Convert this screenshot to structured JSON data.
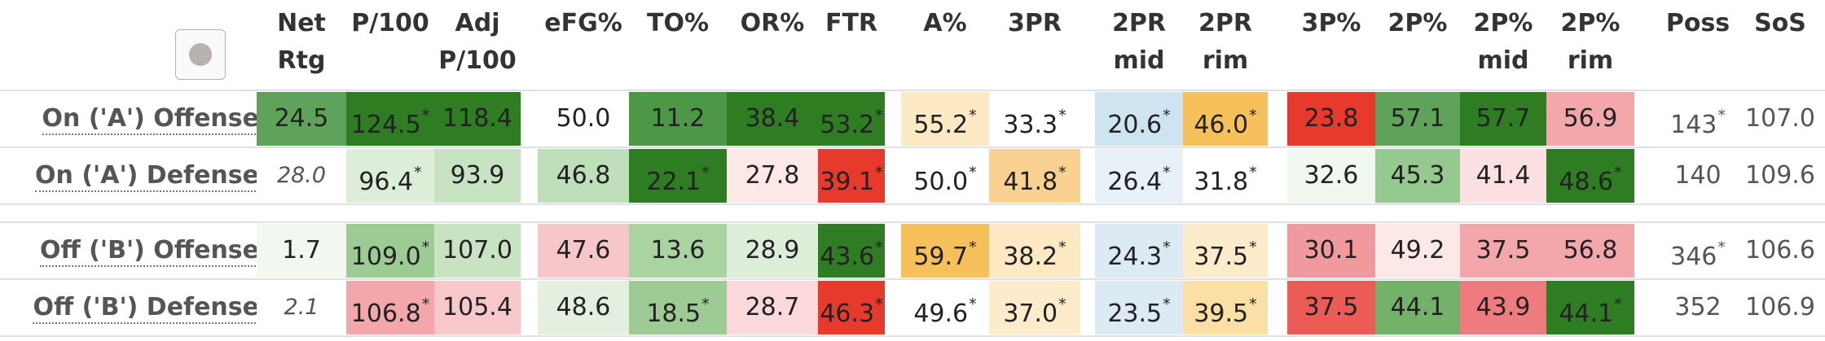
{
  "headers": {
    "net": [
      "Net",
      "Rtg"
    ],
    "p100": [
      "",
      "P/100"
    ],
    "adjp100": [
      "Adj",
      "P/100"
    ],
    "efg": [
      "",
      "eFG%"
    ],
    "to": [
      "",
      "TO%"
    ],
    "or": [
      "",
      "OR%"
    ],
    "ftr": [
      "",
      "FTR"
    ],
    "a": [
      "",
      "A%"
    ],
    "threepr": [
      "",
      "3PR"
    ],
    "twoprmid": [
      "2PR",
      "mid"
    ],
    "twoprrim": [
      "2PR",
      "rim"
    ],
    "threep": [
      "",
      "3P%"
    ],
    "twop": [
      "",
      "2P%"
    ],
    "twopmid": [
      "2P%",
      "mid"
    ],
    "twoprim2": [
      "2P%",
      "rim"
    ],
    "poss": [
      "",
      "Poss"
    ],
    "sos": [
      "",
      "SoS"
    ]
  },
  "rows": [
    {
      "label": "On ('A') Offense",
      "cells": [
        {
          "v": "24.5",
          "s": "",
          "bg": "#5fa35a"
        },
        {
          "v": "124.5",
          "s": "*",
          "bg": "#2e7d23"
        },
        {
          "v": "118.4",
          "s": "",
          "bg": "#2e7d23"
        },
        {
          "v": "50.0",
          "s": "",
          "bg": "#ffffff"
        },
        {
          "v": "11.2",
          "s": "",
          "bg": "#4d9846"
        },
        {
          "v": "38.4",
          "s": "",
          "bg": "#2e7d23"
        },
        {
          "v": "53.2",
          "s": "*",
          "bg": "#2e7d23"
        },
        {
          "v": "55.2",
          "s": "*",
          "bg": "#fde9c4"
        },
        {
          "v": "33.3",
          "s": "*",
          "bg": "#ffffff"
        },
        {
          "v": "20.6",
          "s": "*",
          "bg": "#cfe4f1"
        },
        {
          "v": "46.0",
          "s": "*",
          "bg": "#f6c15a"
        },
        {
          "v": "23.8",
          "s": "",
          "bg": "#e7392c"
        },
        {
          "v": "57.1",
          "s": "",
          "bg": "#5fa35a"
        },
        {
          "v": "57.7",
          "s": "",
          "bg": "#2e7d23"
        },
        {
          "v": "56.9",
          "s": "",
          "bg": "#f4a7aa"
        },
        {
          "v": "143",
          "s": "*",
          "bg": "#ffffff",
          "plain": true
        },
        {
          "v": "107.0",
          "s": "",
          "bg": "#ffffff",
          "plain": true
        }
      ]
    },
    {
      "label": "On ('A') Defense",
      "cells": [
        {
          "v": "28.0",
          "s": "",
          "bg": "#ffffff",
          "it": true
        },
        {
          "v": "96.4",
          "s": "*",
          "bg": "#ddeed8"
        },
        {
          "v": "93.9",
          "s": "",
          "bg": "#c7e3c1"
        },
        {
          "v": "46.8",
          "s": "",
          "bg": "#bfdeba"
        },
        {
          "v": "22.1",
          "s": "*",
          "bg": "#2e7d23"
        },
        {
          "v": "27.8",
          "s": "",
          "bg": "#fde8e8"
        },
        {
          "v": "39.1",
          "s": "*",
          "bg": "#e7392c"
        },
        {
          "v": "50.0",
          "s": "*",
          "bg": "#ffffff"
        },
        {
          "v": "41.8",
          "s": "*",
          "bg": "#f9d291"
        },
        {
          "v": "26.4",
          "s": "*",
          "bg": "#e8f1f8"
        },
        {
          "v": "31.8",
          "s": "*",
          "bg": "#ffffff"
        },
        {
          "v": "32.6",
          "s": "",
          "bg": "#f1f8ef"
        },
        {
          "v": "45.3",
          "s": "",
          "bg": "#96c98f"
        },
        {
          "v": "41.4",
          "s": "",
          "bg": "#fde1e2"
        },
        {
          "v": "48.6",
          "s": "*",
          "bg": "#2e7d23"
        },
        {
          "v": "140",
          "s": "",
          "bg": "#ffffff",
          "plain": true
        },
        {
          "v": "109.6",
          "s": "",
          "bg": "#ffffff",
          "plain": true
        }
      ]
    },
    {
      "label": "Off ('B') Offense",
      "cells": [
        {
          "v": "1.7",
          "s": "",
          "bg": "#f2f8f0"
        },
        {
          "v": "109.0",
          "s": "*",
          "bg": "#9ccc93"
        },
        {
          "v": "107.0",
          "s": "",
          "bg": "#c7e3c1"
        },
        {
          "v": "47.6",
          "s": "",
          "bg": "#f7c6c8"
        },
        {
          "v": "13.6",
          "s": "",
          "bg": "#a9d3a1"
        },
        {
          "v": "28.9",
          "s": "",
          "bg": "#ddeed8"
        },
        {
          "v": "43.6",
          "s": "*",
          "bg": "#2e7d23"
        },
        {
          "v": "59.7",
          "s": "*",
          "bg": "#f6c15a"
        },
        {
          "v": "38.2",
          "s": "*",
          "bg": "#fde9c4"
        },
        {
          "v": "24.3",
          "s": "*",
          "bg": "#dceaf4"
        },
        {
          "v": "37.5",
          "s": "*",
          "bg": "#fdeccc"
        },
        {
          "v": "30.1",
          "s": "",
          "bg": "#f19a9d"
        },
        {
          "v": "49.2",
          "s": "",
          "bg": "#fde8e8"
        },
        {
          "v": "37.5",
          "s": "",
          "bg": "#f4a7aa"
        },
        {
          "v": "56.8",
          "s": "",
          "bg": "#f4a7aa"
        },
        {
          "v": "346",
          "s": "*",
          "bg": "#ffffff",
          "plain": true
        },
        {
          "v": "106.6",
          "s": "",
          "bg": "#ffffff",
          "plain": true
        }
      ]
    },
    {
      "label": "Off ('B') Defense",
      "cells": [
        {
          "v": "2.1",
          "s": "",
          "bg": "#ffffff",
          "it": true
        },
        {
          "v": "106.8",
          "s": "*",
          "bg": "#f4a7aa"
        },
        {
          "v": "105.4",
          "s": "",
          "bg": "#f8c8ca"
        },
        {
          "v": "48.6",
          "s": "",
          "bg": "#e3f0df"
        },
        {
          "v": "18.5",
          "s": "*",
          "bg": "#9ccc93"
        },
        {
          "v": "28.7",
          "s": "",
          "bg": "#fbd9da"
        },
        {
          "v": "46.3",
          "s": "*",
          "bg": "#e7392c"
        },
        {
          "v": "49.6",
          "s": "*",
          "bg": "#ffffff"
        },
        {
          "v": "37.0",
          "s": "*",
          "bg": "#fdeccc"
        },
        {
          "v": "23.5",
          "s": "*",
          "bg": "#dceaf4"
        },
        {
          "v": "39.5",
          "s": "*",
          "bg": "#fcdfa5"
        },
        {
          "v": "37.5",
          "s": "",
          "bg": "#ea5c55"
        },
        {
          "v": "44.1",
          "s": "",
          "bg": "#74b26b"
        },
        {
          "v": "43.9",
          "s": "",
          "bg": "#ee7c7e"
        },
        {
          "v": "44.1",
          "s": "*",
          "bg": "#2e7d23"
        },
        {
          "v": "352",
          "s": "",
          "bg": "#ffffff",
          "plain": true
        },
        {
          "v": "106.9",
          "s": "",
          "bg": "#ffffff",
          "plain": true
        }
      ]
    }
  ]
}
